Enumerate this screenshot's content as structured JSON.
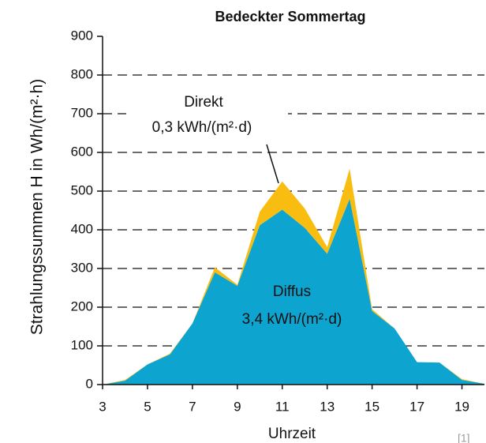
{
  "chart_data": {
    "type": "stacked_area",
    "title": "Bedeckter Sommertag",
    "x_label": "Uhrzeit",
    "y_label": "Strahlungssummen H in Wh/(m²·h)",
    "x": [
      3,
      4,
      5,
      6,
      7,
      8,
      9,
      10,
      11,
      12,
      13,
      14,
      15,
      16,
      17,
      18,
      19,
      20
    ],
    "series": [
      {
        "name": "Diffus",
        "color": "#0ea4d0",
        "values": [
          0,
          10,
          52,
          78,
          158,
          290,
          255,
          412,
          452,
          405,
          338,
          480,
          190,
          145,
          58,
          57,
          12,
          2
        ]
      },
      {
        "name": "Direkt",
        "color": "#f8bd10",
        "values": [
          0,
          2,
          0,
          2,
          0,
          13,
          3,
          35,
          73,
          50,
          17,
          78,
          5,
          0,
          0,
          0,
          2,
          0
        ]
      }
    ],
    "annotations": [
      "Direkt",
      "0,3 kWh/(m²·d)",
      "Diffus",
      "3,4 kWh/(m²·d)"
    ],
    "source": "[1]",
    "xlim": [
      3,
      20
    ],
    "xticks": [
      3,
      5,
      7,
      9,
      11,
      13,
      15,
      17,
      19
    ],
    "ylim": [
      0,
      900
    ],
    "yticks": [
      0,
      100,
      200,
      300,
      400,
      500,
      600,
      700,
      800,
      900
    ],
    "grid": true
  }
}
